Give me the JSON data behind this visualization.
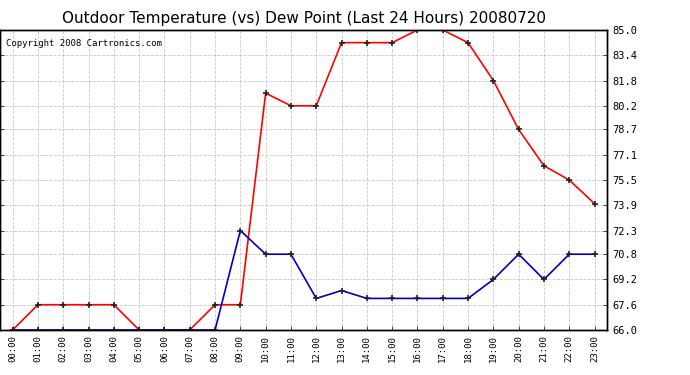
{
  "title": "Outdoor Temperature (vs) Dew Point (Last 24 Hours) 20080720",
  "copyright": "Copyright 2008 Cartronics.com",
  "x_labels": [
    "00:00",
    "01:00",
    "02:00",
    "03:00",
    "04:00",
    "05:00",
    "06:00",
    "07:00",
    "08:00",
    "09:00",
    "10:00",
    "11:00",
    "12:00",
    "13:00",
    "14:00",
    "15:00",
    "16:00",
    "17:00",
    "18:00",
    "19:00",
    "20:00",
    "21:00",
    "22:00",
    "23:00"
  ],
  "temp_values": [
    66.0,
    67.6,
    67.6,
    67.6,
    67.6,
    66.0,
    66.0,
    66.0,
    67.6,
    67.6,
    81.0,
    80.2,
    80.2,
    84.2,
    84.2,
    84.2,
    85.0,
    85.0,
    84.2,
    81.8,
    78.7,
    76.4,
    75.5,
    74.0
  ],
  "dew_values": [
    66.0,
    66.0,
    66.0,
    66.0,
    66.0,
    66.0,
    66.0,
    66.0,
    66.0,
    72.3,
    70.8,
    70.8,
    68.0,
    68.5,
    68.0,
    68.0,
    68.0,
    68.0,
    68.0,
    69.2,
    70.8,
    69.2,
    70.8,
    70.8
  ],
  "temp_color": "#FF0000",
  "dew_color": "#0000BB",
  "bg_color": "#FFFFFF",
  "plot_bg_color": "#FFFFFF",
  "grid_color": "#BBBBBB",
  "ylim": [
    66.0,
    85.0
  ],
  "yticks": [
    66.0,
    67.6,
    69.2,
    70.8,
    72.3,
    73.9,
    75.5,
    77.1,
    78.7,
    80.2,
    81.8,
    83.4,
    85.0
  ],
  "title_fontsize": 11,
  "copyright_fontsize": 6.5
}
